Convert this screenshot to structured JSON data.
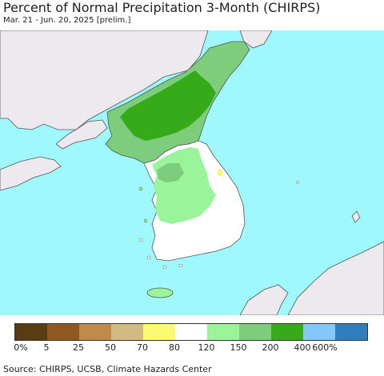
{
  "title": "Percent of Normal Precipitation 3-Month (CHIRPS)",
  "subtitle": "Mar. 21 - Jun. 20, 2025 [prelim.]",
  "source": "Source: CHIRPS, UCSB, Climate Hazards Center",
  "colors": {
    "ocean": "#9ff8fc",
    "land_outside": "#eceaee",
    "border": "#555555"
  },
  "legend": {
    "colors": [
      "#5a3c14",
      "#8e5a22",
      "#c08a48",
      "#d2bb82",
      "#fbfb73",
      "#ffffff",
      "#9af59a",
      "#7dcd7d",
      "#35ab1a",
      "#82c8f8",
      "#2d7fbd"
    ],
    "labels": [
      "0%",
      "5",
      "25",
      "50",
      "70",
      "80",
      "120",
      "150",
      "200",
      "400",
      "600%"
    ]
  }
}
